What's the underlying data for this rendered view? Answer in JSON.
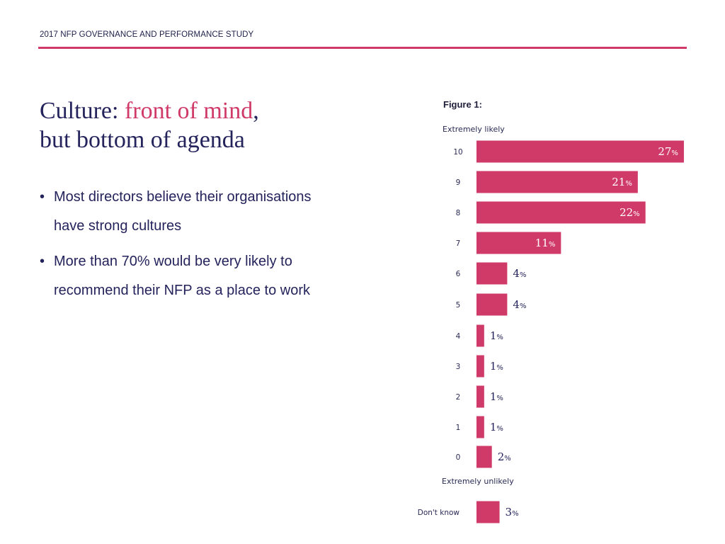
{
  "header": {
    "title": "2017 NFP GOVERNANCE AND PERFORMANCE STUDY"
  },
  "headline": {
    "part1": "Culture: ",
    "accent": "front of mind",
    "part2": ",",
    "line2": "but bottom of agenda"
  },
  "bullets": [
    "Most directors believe their organisations have strong cultures",
    "More than 70% would be very likely to recommend their NFP as a place to work"
  ],
  "figure": {
    "label": "Figure 1:"
  },
  "colors": {
    "bar": "#d03a68",
    "text": "#24235c",
    "accent": "#d03a68"
  },
  "chart_data": {
    "type": "bar",
    "orientation": "horizontal",
    "categories": [
      "10",
      "9",
      "8",
      "7",
      "6",
      "5",
      "4",
      "3",
      "2",
      "1",
      "0",
      "Don't know"
    ],
    "values": [
      27,
      21,
      22,
      11,
      4,
      4,
      1,
      1,
      1,
      1,
      2,
      3
    ],
    "value_suffix": "%",
    "top_label": "Extremely likely",
    "bottom_label": "Extremely unlikely",
    "data_labels_inside": [
      true,
      true,
      true,
      true,
      false,
      false,
      false,
      false,
      false,
      false,
      false,
      false
    ]
  }
}
